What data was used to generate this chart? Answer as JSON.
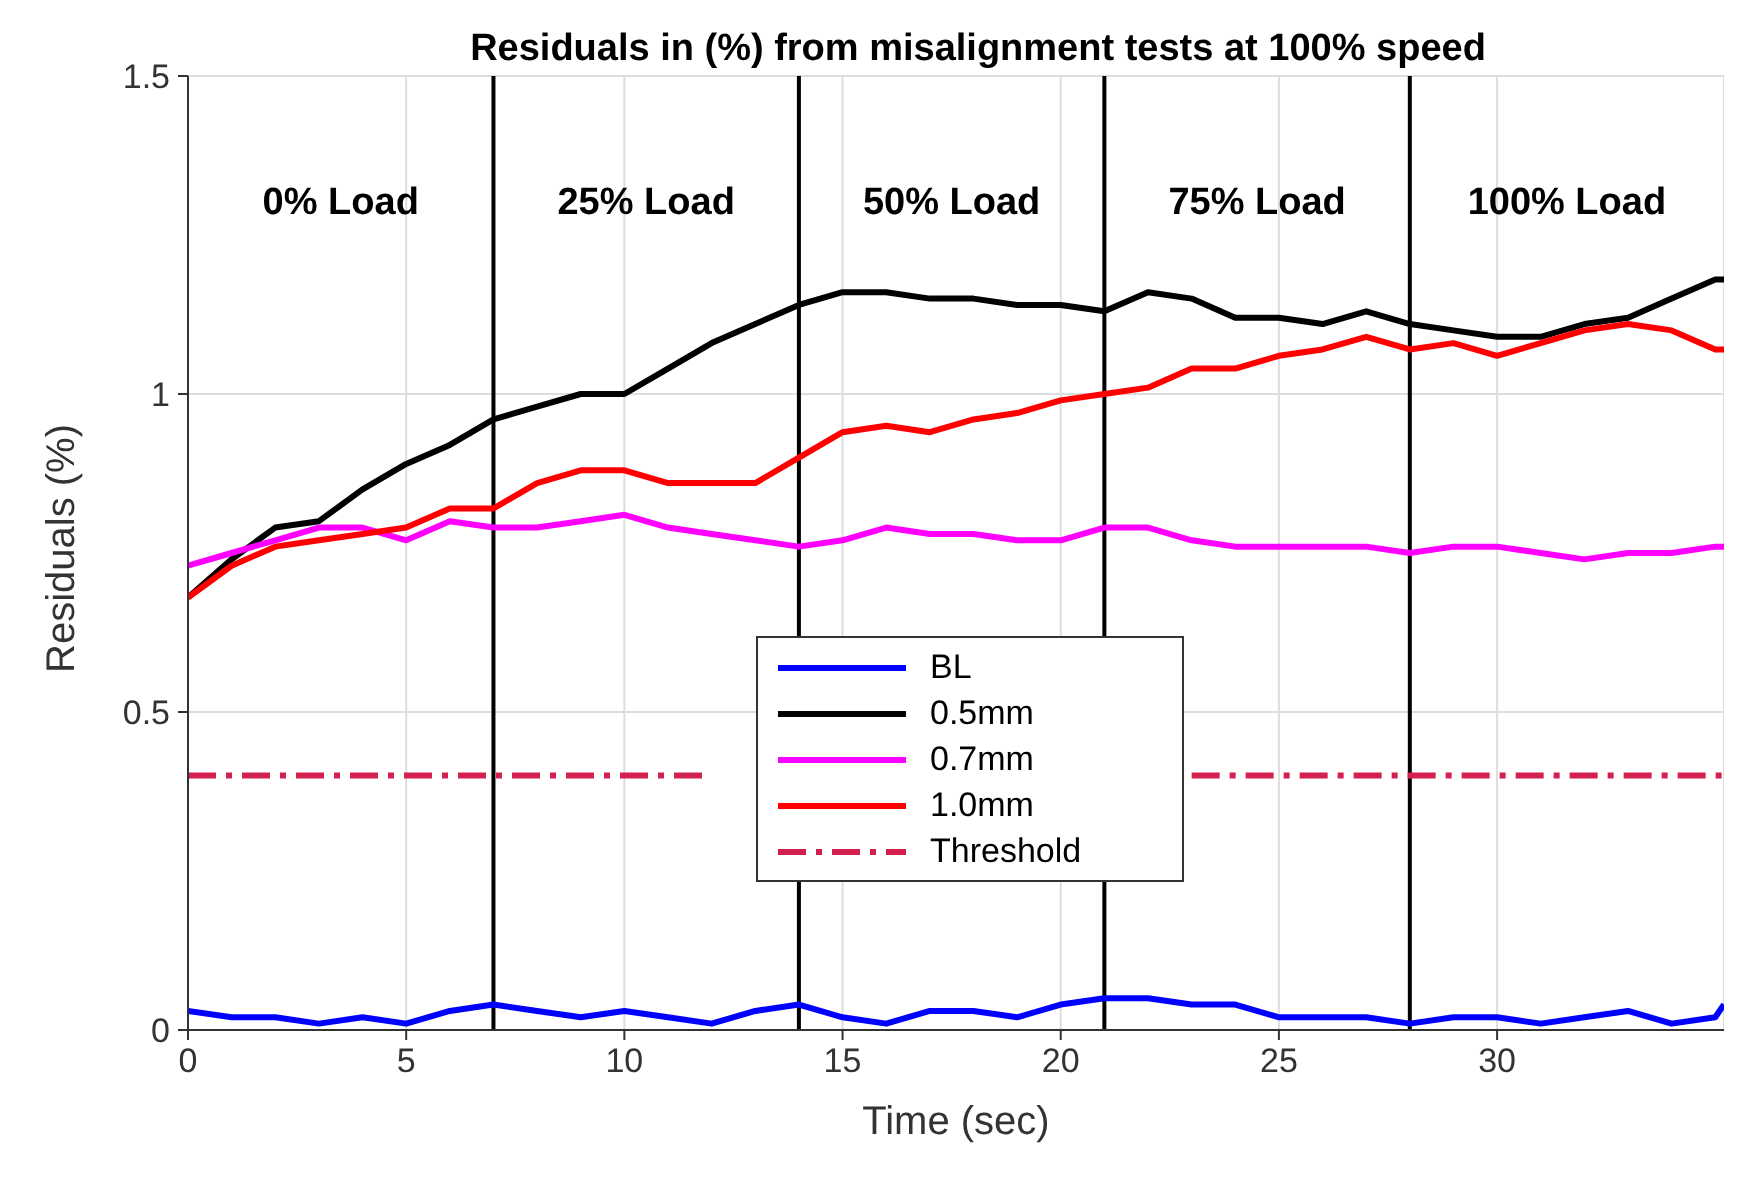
{
  "chart_data": {
    "type": "line",
    "title": "Residuals in (%) from misalignment tests at 100% speed",
    "xlabel": "Time (sec)",
    "ylabel": "Residuals (%)",
    "x": [
      0,
      1,
      2,
      3,
      4,
      5,
      6,
      7,
      8,
      9,
      10,
      11,
      12,
      13,
      14,
      15,
      16,
      17,
      18,
      19,
      20,
      21,
      22,
      23,
      24,
      25,
      26,
      27,
      28,
      29,
      30,
      31,
      32,
      33,
      34,
      35,
      35.2
    ],
    "series": [
      {
        "name": "BL",
        "color": "#0000ff",
        "values": [
          0.03,
          0.02,
          0.02,
          0.01,
          0.02,
          0.01,
          0.03,
          0.04,
          0.03,
          0.02,
          0.03,
          0.02,
          0.01,
          0.03,
          0.04,
          0.02,
          0.01,
          0.03,
          0.03,
          0.02,
          0.04,
          0.05,
          0.05,
          0.04,
          0.04,
          0.02,
          0.02,
          0.02,
          0.01,
          0.02,
          0.02,
          0.01,
          0.02,
          0.03,
          0.01,
          0.02,
          0.04
        ]
      },
      {
        "name": "0.5mm",
        "color": "#000000",
        "values": [
          0.68,
          0.74,
          0.79,
          0.8,
          0.85,
          0.89,
          0.92,
          0.96,
          0.98,
          1.0,
          1.0,
          1.04,
          1.08,
          1.11,
          1.14,
          1.16,
          1.16,
          1.15,
          1.15,
          1.14,
          1.14,
          1.13,
          1.16,
          1.15,
          1.12,
          1.12,
          1.11,
          1.13,
          1.11,
          1.1,
          1.09,
          1.09,
          1.11,
          1.12,
          1.15,
          1.18,
          1.18
        ]
      },
      {
        "name": "0.7mm",
        "color": "#ff00ff",
        "values": [
          0.73,
          0.75,
          0.77,
          0.79,
          0.79,
          0.77,
          0.8,
          0.79,
          0.79,
          0.8,
          0.81,
          0.79,
          0.78,
          0.77,
          0.76,
          0.77,
          0.79,
          0.78,
          0.78,
          0.77,
          0.77,
          0.79,
          0.79,
          0.77,
          0.76,
          0.76,
          0.76,
          0.76,
          0.75,
          0.76,
          0.76,
          0.75,
          0.74,
          0.75,
          0.75,
          0.76,
          0.76
        ]
      },
      {
        "name": "1.0mm",
        "color": "#ff0000",
        "values": [
          0.68,
          0.73,
          0.76,
          0.77,
          0.78,
          0.79,
          0.82,
          0.82,
          0.86,
          0.88,
          0.88,
          0.86,
          0.86,
          0.86,
          0.9,
          0.94,
          0.95,
          0.94,
          0.96,
          0.97,
          0.99,
          1.0,
          1.01,
          1.04,
          1.04,
          1.06,
          1.07,
          1.09,
          1.07,
          1.08,
          1.06,
          1.08,
          1.1,
          1.11,
          1.1,
          1.07,
          1.07
        ]
      },
      {
        "name": "Threshold",
        "color": "#d2204f",
        "line_style": "dashed",
        "values": [
          0.4,
          0.4,
          0.4,
          0.4,
          0.4,
          0.4,
          0.4,
          0.4,
          0.4,
          0.4,
          0.4,
          0.4,
          0.4,
          null,
          null,
          null,
          null,
          null,
          null,
          null,
          null,
          null,
          null,
          0.4,
          0.4,
          0.4,
          0.4,
          0.4,
          0.4,
          0.4,
          0.4,
          0.4,
          0.4,
          0.4,
          0.4,
          0.4,
          0.4
        ]
      }
    ],
    "xlim": [
      0,
      35.2
    ],
    "xticks": [
      0,
      5,
      10,
      15,
      20,
      25,
      30
    ],
    "ylim": [
      0,
      1.5
    ],
    "yticks": [
      0,
      0.5,
      1,
      1.5
    ],
    "ref_lines": [
      {
        "axis": "x",
        "value": 7,
        "color": "#000000"
      },
      {
        "axis": "x",
        "value": 14,
        "color": "#000000"
      },
      {
        "axis": "x",
        "value": 21,
        "color": "#000000"
      },
      {
        "axis": "x",
        "value": 28,
        "color": "#000000"
      }
    ],
    "annotations": [
      "0% Load",
      "25% Load",
      "50% Load",
      "75% Load",
      "100% Load"
    ],
    "grid": true,
    "legend": "bottom",
    "line_style": "solid",
    "marker": "none"
  }
}
